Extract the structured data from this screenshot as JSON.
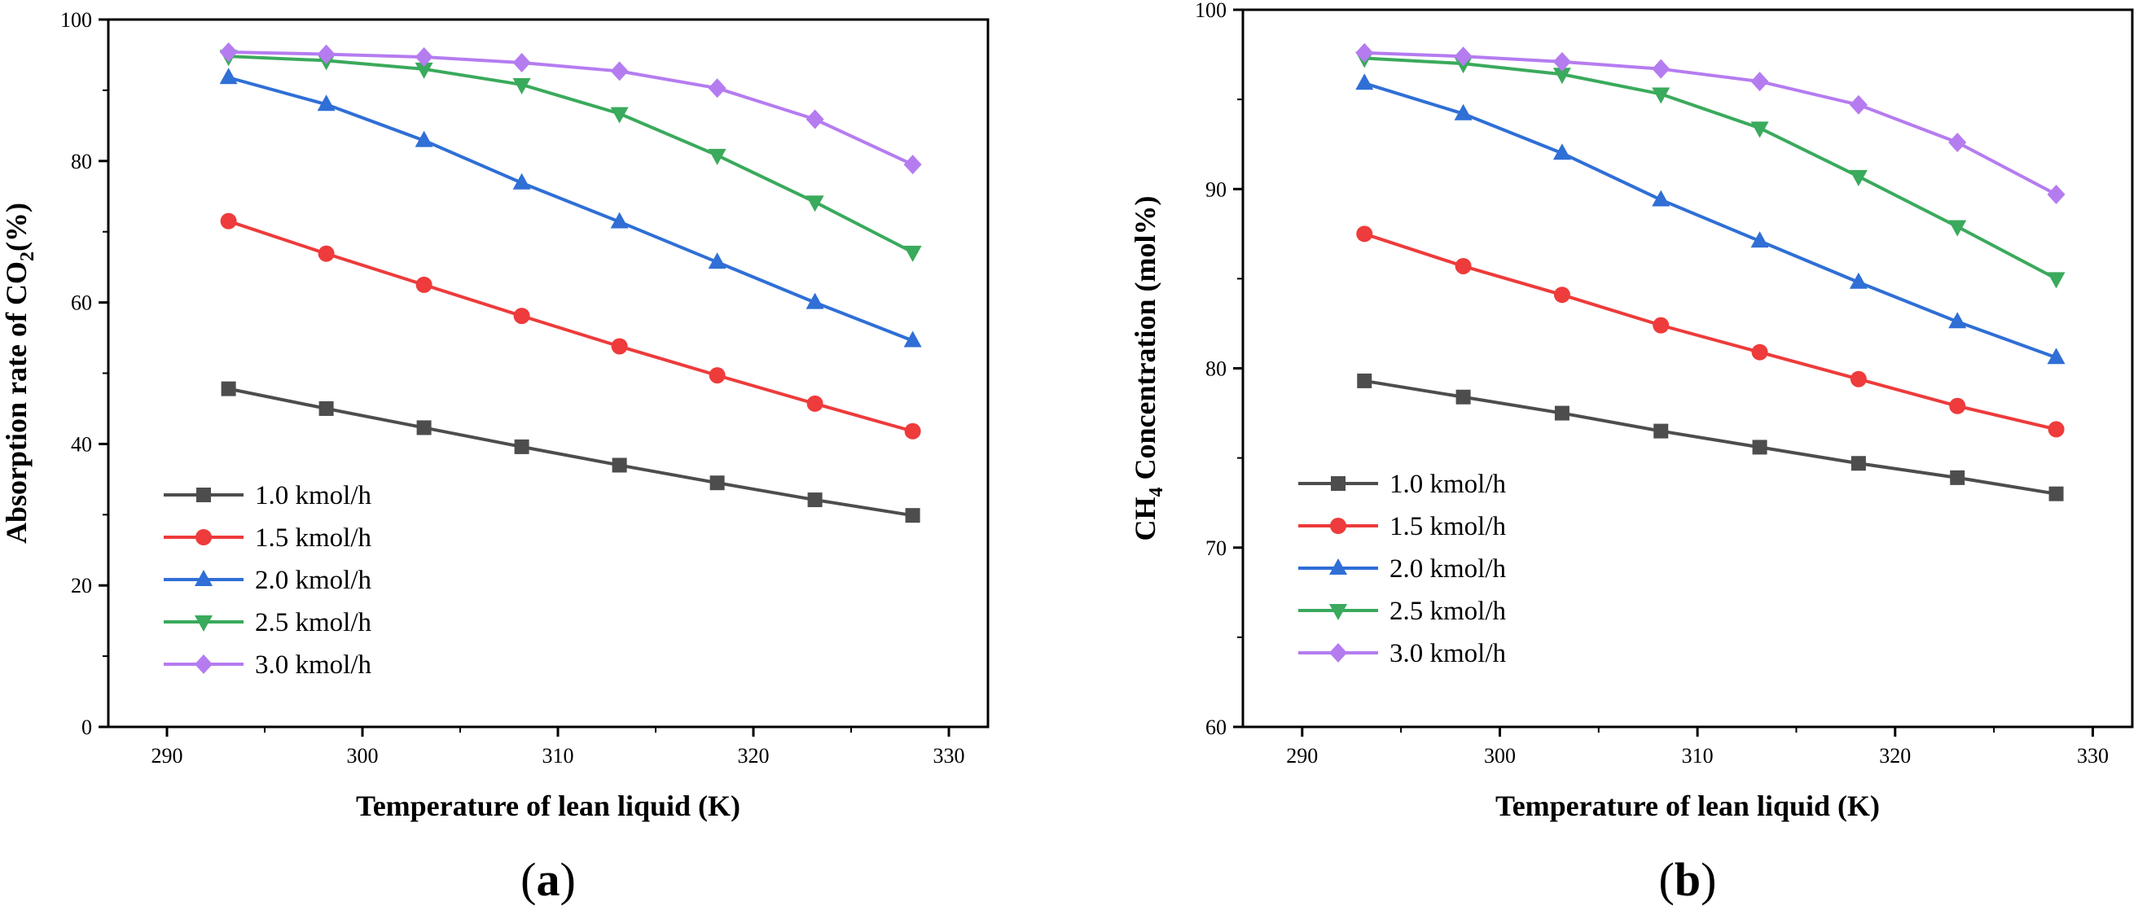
{
  "chart_data": [
    {
      "type": "line",
      "panel_label": "(a)",
      "panel_letter": "a",
      "xlabel": "Temperature of lean liquid (K)",
      "ylabel_parts": [
        "Absorption rate of CO",
        "2",
        "(%)"
      ],
      "xlim": [
        287,
        332
      ],
      "ylim": [
        0,
        100
      ],
      "xticks": [
        290,
        300,
        310,
        320,
        330
      ],
      "yticks": [
        0,
        20,
        40,
        60,
        80,
        100
      ],
      "x": [
        293.15,
        298.15,
        303.15,
        308.15,
        313.15,
        318.15,
        323.15,
        328.15
      ],
      "legend_position": "bottom-left",
      "series": [
        {
          "name": "1.0 kmol/h",
          "color": "#4d4d4d",
          "marker": "square",
          "values": [
            47.8,
            45.0,
            42.3,
            39.6,
            37.0,
            34.5,
            32.1,
            29.9
          ]
        },
        {
          "name": "1.5 kmol/h",
          "color": "#ee3b3b",
          "marker": "circle",
          "values": [
            71.5,
            66.9,
            62.5,
            58.1,
            53.8,
            49.7,
            45.7,
            41.8
          ]
        },
        {
          "name": "2.0 kmol/h",
          "color": "#2f6fd6",
          "marker": "triangle-up",
          "values": [
            91.8,
            88.0,
            82.9,
            76.9,
            71.4,
            65.7,
            60.0,
            54.6
          ]
        },
        {
          "name": "2.5 kmol/h",
          "color": "#3aaa5c",
          "marker": "triangle-down",
          "values": [
            94.8,
            94.2,
            93.0,
            90.8,
            86.7,
            80.8,
            74.2,
            67.1
          ]
        },
        {
          "name": "3.0 kmol/h",
          "color": "#b57cf0",
          "marker": "diamond",
          "values": [
            95.4,
            95.1,
            94.7,
            93.9,
            92.7,
            90.3,
            85.9,
            79.5
          ]
        }
      ]
    },
    {
      "type": "line",
      "panel_label": "(b)",
      "panel_letter": "b",
      "xlabel": "Temperature of lean liquid (K)",
      "ylabel_parts": [
        "CH",
        "4",
        " Concentration (mol%)"
      ],
      "xlim": [
        287,
        332
      ],
      "ylim": [
        60,
        100
      ],
      "xticks": [
        290,
        300,
        310,
        320,
        330
      ],
      "yticks": [
        60,
        70,
        80,
        90,
        100
      ],
      "x": [
        293.15,
        298.15,
        303.15,
        308.15,
        313.15,
        318.15,
        323.15,
        328.15
      ],
      "legend_position": "bottom-left",
      "series": [
        {
          "name": "1.0 kmol/h",
          "color": "#4d4d4d",
          "marker": "square",
          "values": [
            79.3,
            78.4,
            77.5,
            76.5,
            75.6,
            74.7,
            73.9,
            73.0
          ]
        },
        {
          "name": "1.5 kmol/h",
          "color": "#ee3b3b",
          "marker": "circle",
          "values": [
            87.5,
            85.7,
            84.1,
            82.4,
            80.9,
            79.4,
            77.9,
            76.6
          ]
        },
        {
          "name": "2.0 kmol/h",
          "color": "#2f6fd6",
          "marker": "triangle-up",
          "values": [
            95.9,
            94.2,
            92.0,
            89.4,
            87.1,
            84.8,
            82.6,
            80.6
          ]
        },
        {
          "name": "2.5 kmol/h",
          "color": "#3aaa5c",
          "marker": "triangle-down",
          "values": [
            97.3,
            97.0,
            96.4,
            95.3,
            93.4,
            90.7,
            87.9,
            85.0
          ]
        },
        {
          "name": "3.0 kmol/h",
          "color": "#b57cf0",
          "marker": "diamond",
          "values": [
            97.6,
            97.4,
            97.1,
            96.7,
            96.0,
            94.7,
            92.6,
            89.7
          ]
        }
      ]
    }
  ]
}
